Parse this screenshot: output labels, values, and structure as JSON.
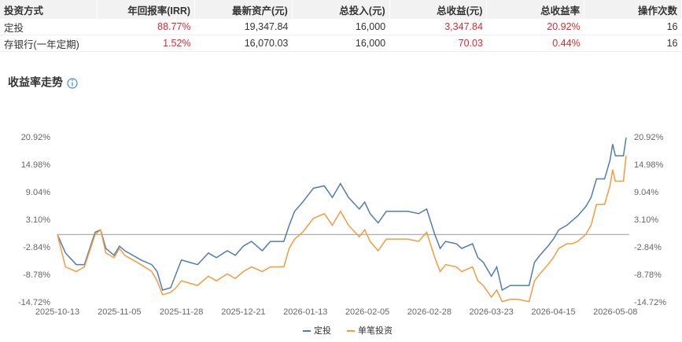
{
  "table": {
    "header": [
      "投资方式",
      "年回报率(IRR)",
      "最新资产(元)",
      "总投入(元)",
      "总收益(元)",
      "总收益率",
      "操作次数"
    ],
    "rows": [
      [
        "定投",
        "88.77%",
        "19,347.84",
        "16,000",
        "3,347.84",
        "20.92%",
        "16"
      ],
      [
        "存银行(一年定期)",
        "1.52%",
        "16,070.03",
        "16,000",
        "70.03",
        "0.44%",
        "16"
      ]
    ]
  },
  "chart_data": {
    "type": "line",
    "title": "收益率走势",
    "x": [
      "2025-10-13",
      "2025-10-16",
      "2025-10-20",
      "2025-10-23",
      "2025-10-27",
      "2025-10-29",
      "2025-10-31",
      "2025-11-03",
      "2025-11-05",
      "2025-11-07",
      "2025-11-10",
      "2025-11-13",
      "2025-11-17",
      "2025-11-19",
      "2025-11-21",
      "2025-11-24",
      "2025-11-26",
      "2025-11-28",
      "2025-12-01",
      "2025-12-04",
      "2025-12-08",
      "2025-12-11",
      "2025-12-15",
      "2025-12-18",
      "2025-12-21",
      "2025-12-24",
      "2025-12-28",
      "2025-12-31",
      "2026-01-05",
      "2026-01-07",
      "2026-01-09",
      "2026-01-12",
      "2026-01-14",
      "2026-01-16",
      "2026-01-20",
      "2026-01-23",
      "2026-01-26",
      "2026-01-29",
      "2026-02-02",
      "2026-02-04",
      "2026-02-06",
      "2026-02-09",
      "2026-02-12",
      "2026-02-16",
      "2026-02-20",
      "2026-02-24",
      "2026-02-27",
      "2026-03-02",
      "2026-03-04",
      "2026-03-06",
      "2026-03-10",
      "2026-03-12",
      "2026-03-16",
      "2026-03-18",
      "2026-03-20",
      "2026-03-23",
      "2026-03-25",
      "2026-03-27",
      "2026-03-30",
      "2026-04-02",
      "2026-04-06",
      "2026-04-08",
      "2026-04-10",
      "2026-04-13",
      "2026-04-15",
      "2026-04-17",
      "2026-04-20",
      "2026-04-22",
      "2026-04-24",
      "2026-04-27",
      "2026-04-29",
      "2026-05-01",
      "2026-05-04",
      "2026-05-06",
      "2026-05-07",
      "2026-05-08",
      "2026-05-11",
      "2026-05-12"
    ],
    "series": [
      {
        "name": "定投",
        "color": "#4f7db3",
        "values": [
          0,
          -4,
          -6.5,
          -6.5,
          0.5,
          1,
          -3,
          -4.5,
          -2.5,
          -3.5,
          -4.5,
          -5.5,
          -6.5,
          -8,
          -12,
          -11.5,
          -8.5,
          -5.5,
          -6,
          -6.5,
          -4,
          -5,
          -3.5,
          -4.5,
          -2.5,
          -1.5,
          -3.5,
          -1.5,
          -1.5,
          2,
          5,
          7,
          8.5,
          10,
          10.5,
          8,
          11,
          8,
          5.5,
          7,
          4.5,
          2.5,
          5,
          5,
          5,
          4.5,
          5.5,
          0,
          -3,
          -1.5,
          -2,
          -3,
          -2,
          -5,
          -6,
          -9,
          -7,
          -12,
          -11,
          -11,
          -11,
          -6,
          -4.5,
          -2.5,
          -1,
          1,
          2,
          3,
          4,
          6,
          8,
          12,
          12,
          16,
          19.5,
          17,
          17,
          20.92
        ]
      },
      {
        "name": "单笔投资",
        "color": "#f59a3d",
        "values": [
          0,
          -7,
          -8,
          -7,
          0,
          1,
          -4,
          -5,
          -3,
          -4.5,
          -5.5,
          -6.5,
          -8,
          -10,
          -13,
          -12.5,
          -11.5,
          -10,
          -10.5,
          -11,
          -9,
          -10,
          -8.5,
          -9.5,
          -8,
          -7,
          -8,
          -7,
          -7,
          -3,
          -1,
          0.5,
          2,
          3.5,
          4.5,
          2,
          5,
          2,
          -0.5,
          1,
          -1.5,
          -3.5,
          -1,
          -1,
          -1,
          -1.5,
          0.5,
          -5,
          -8,
          -6.5,
          -7,
          -8,
          -7,
          -10,
          -11,
          -13.5,
          -12,
          -14.5,
          -14,
          -14,
          -14.5,
          -10,
          -8.5,
          -6.5,
          -5,
          -3,
          -2,
          -2,
          -1.5,
          0,
          2,
          6.5,
          6.5,
          10.5,
          14,
          11.5,
          11.5,
          17
        ]
      }
    ],
    "xlim": [
      "2025-10-13",
      "2026-05-12"
    ],
    "xticks": [
      "2025-10-13",
      "2025-11-05",
      "2025-11-28",
      "2025-12-21",
      "2026-01-13",
      "2026-02-05",
      "2026-02-28",
      "2026-03-23",
      "2026-04-15",
      "2026-05-08"
    ],
    "ylim": [
      -14.72,
      20.92
    ],
    "yticks": [
      {
        "value": -14.72,
        "label": "-14.72%"
      },
      {
        "value": -8.78,
        "label": "-8.78%"
      },
      {
        "value": -2.84,
        "label": "-2.84%"
      },
      {
        "value": 3.1,
        "label": "3.10%"
      },
      {
        "value": 9.04,
        "label": "9.04%"
      },
      {
        "value": 14.98,
        "label": "14.98%"
      },
      {
        "value": 20.92,
        "label": "20.92%"
      }
    ],
    "grid": false,
    "legend": "bottom"
  }
}
